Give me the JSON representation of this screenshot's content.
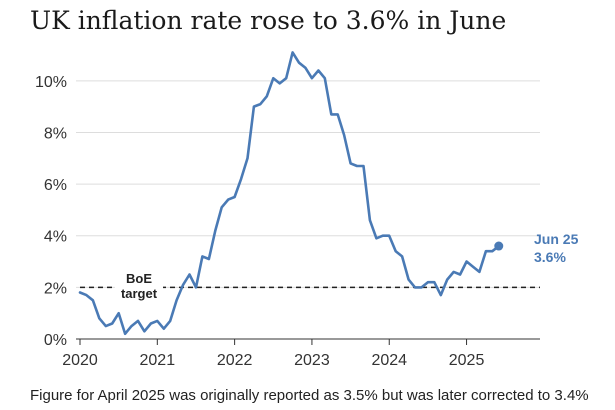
{
  "chart_data": {
    "type": "line",
    "title": "UK inflation rate rose to 3.6% in June",
    "xlabel": "",
    "ylabel": "",
    "x_range": [
      "2020-01",
      "2025-12"
    ],
    "ylim": [
      0,
      11
    ],
    "y_ticks": [
      0,
      2,
      4,
      6,
      8,
      10
    ],
    "y_tick_labels": [
      "0%",
      "2%",
      "4%",
      "6%",
      "8%",
      "10%"
    ],
    "x_ticks": [
      "2020",
      "2021",
      "2022",
      "2023",
      "2024",
      "2025"
    ],
    "grid": true,
    "target": {
      "value": 2,
      "label": "BoE target"
    },
    "latest": {
      "label": "Jun 25",
      "value_label": "3.6%"
    },
    "accent_color": "#4a7ab5",
    "series": [
      {
        "x": [
          "2020-01",
          "2020-02",
          "2020-03",
          "2020-04",
          "2020-05",
          "2020-06",
          "2020-07",
          "2020-08",
          "2020-09",
          "2020-10",
          "2020-11",
          "2020-12",
          "2021-01",
          "2021-02",
          "2021-03",
          "2021-04",
          "2021-05",
          "2021-06",
          "2021-07",
          "2021-08",
          "2021-09",
          "2021-10",
          "2021-11",
          "2021-12",
          "2022-01",
          "2022-02",
          "2022-03",
          "2022-04",
          "2022-05",
          "2022-06",
          "2022-07",
          "2022-08",
          "2022-09",
          "2022-10",
          "2022-11",
          "2022-12",
          "2023-01",
          "2023-02",
          "2023-03",
          "2023-04",
          "2023-05",
          "2023-06",
          "2023-07",
          "2023-08",
          "2023-09",
          "2023-10",
          "2023-11",
          "2023-12",
          "2024-01",
          "2024-02",
          "2024-03",
          "2024-04",
          "2024-05",
          "2024-06",
          "2024-07",
          "2024-08",
          "2024-09",
          "2024-10",
          "2024-11",
          "2024-12",
          "2025-01",
          "2025-02",
          "2025-03",
          "2025-04",
          "2025-05",
          "2025-06"
        ],
        "values": [
          1.8,
          1.7,
          1.5,
          0.8,
          0.5,
          0.6,
          1.0,
          0.2,
          0.5,
          0.7,
          0.3,
          0.6,
          0.7,
          0.4,
          0.7,
          1.5,
          2.1,
          2.5,
          2.0,
          3.2,
          3.1,
          4.2,
          5.1,
          5.4,
          5.5,
          6.2,
          7.0,
          9.0,
          9.1,
          9.4,
          10.1,
          9.9,
          10.1,
          11.1,
          10.7,
          10.5,
          10.1,
          10.4,
          10.1,
          8.7,
          8.7,
          7.9,
          6.8,
          6.7,
          6.7,
          4.6,
          3.9,
          4.0,
          4.0,
          3.4,
          3.2,
          2.3,
          2.0,
          2.0,
          2.2,
          2.2,
          1.7,
          2.3,
          2.6,
          2.5,
          3.0,
          2.8,
          2.6,
          3.4,
          3.4,
          3.6
        ]
      }
    ]
  },
  "footnote": "Figure for April 2025 was originally reported as 3.5% but was later corrected to 3.4%"
}
